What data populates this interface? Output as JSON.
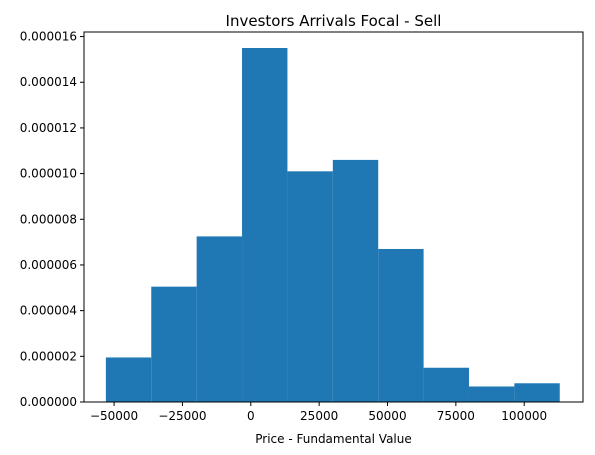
{
  "chart_data": {
    "type": "bar",
    "title": "Investors Arrivals Focal - Sell",
    "xlabel": "Price - Fundamental Value",
    "ylabel": "",
    "bar_color": "#1f77b4",
    "grid": false,
    "legend": "none",
    "xlim": [
      -61000,
      121500
    ],
    "ylim": [
      0,
      1.62e-05
    ],
    "xticks": [
      {
        "value": -50000,
        "label": "−50000"
      },
      {
        "value": -25000,
        "label": "−25000"
      },
      {
        "value": 0,
        "label": "0"
      },
      {
        "value": 25000,
        "label": "25000"
      },
      {
        "value": 50000,
        "label": "50000"
      },
      {
        "value": 75000,
        "label": "75000"
      },
      {
        "value": 100000,
        "label": "100000"
      }
    ],
    "yticks": [
      {
        "value": 0,
        "label": "0.000000"
      },
      {
        "value": 2e-06,
        "label": "0.000002"
      },
      {
        "value": 4e-06,
        "label": "0.000004"
      },
      {
        "value": 6e-06,
        "label": "0.000006"
      },
      {
        "value": 8e-06,
        "label": "0.000008"
      },
      {
        "value": 1e-05,
        "label": "0.000010"
      },
      {
        "value": 1.2e-05,
        "label": "0.000012"
      },
      {
        "value": 1.4e-05,
        "label": "0.000014"
      },
      {
        "value": 1.6e-05,
        "label": "0.000016"
      }
    ],
    "bins": [
      {
        "x0": -53000,
        "x1": -36400,
        "value": 1.95e-06
      },
      {
        "x0": -36400,
        "x1": -19800,
        "value": 5.05e-06
      },
      {
        "x0": -19800,
        "x1": -3200,
        "value": 7.25e-06
      },
      {
        "x0": -3200,
        "x1": 13400,
        "value": 1.55e-05
      },
      {
        "x0": 13400,
        "x1": 30000,
        "value": 1.01e-05
      },
      {
        "x0": 30000,
        "x1": 46600,
        "value": 1.06e-05
      },
      {
        "x0": 46600,
        "x1": 63200,
        "value": 6.7e-06
      },
      {
        "x0": 63200,
        "x1": 79800,
        "value": 1.5e-06
      },
      {
        "x0": 79800,
        "x1": 96400,
        "value": 6.8e-07
      },
      {
        "x0": 96400,
        "x1": 113000,
        "value": 8.2e-07
      }
    ]
  }
}
